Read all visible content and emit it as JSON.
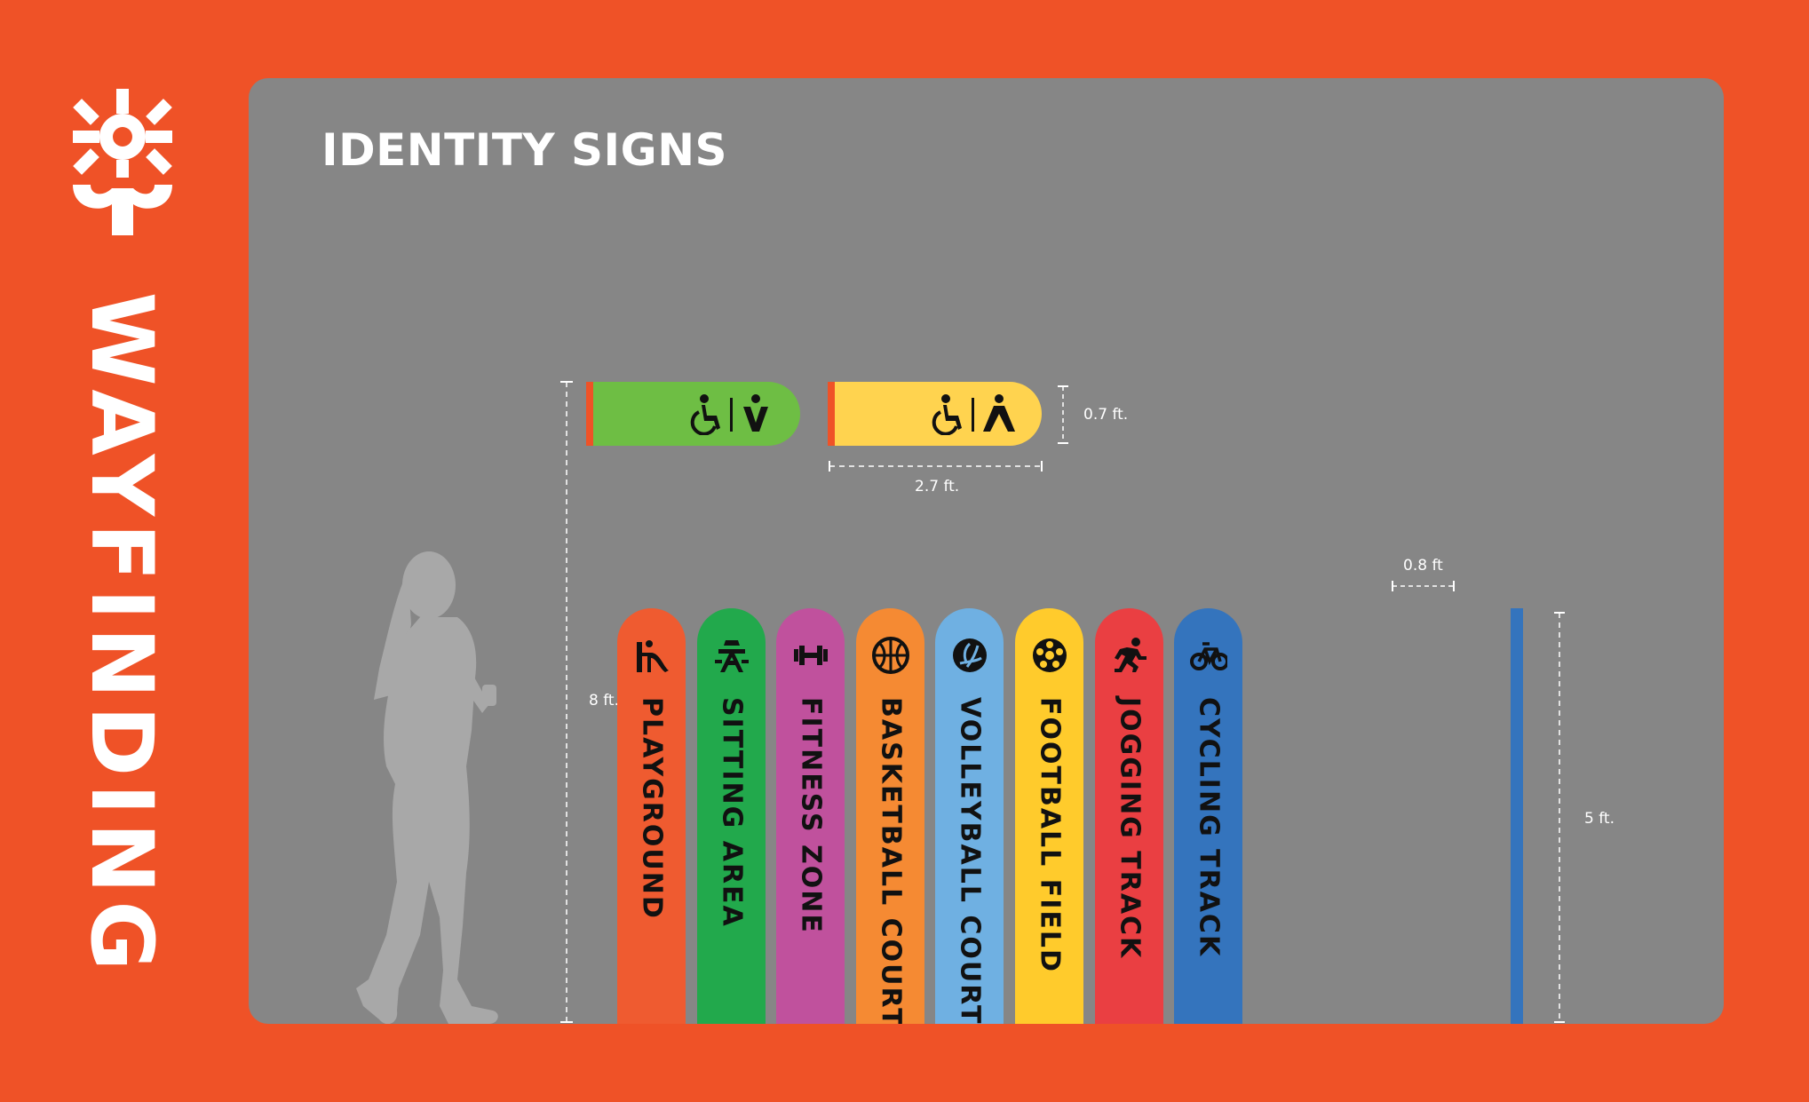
{
  "sidebar": {
    "title": "WAYFINDING",
    "logo_icon": "snowflake-tree-logo"
  },
  "panel": {
    "title": "IDENTITY SIGNS"
  },
  "dimensions": {
    "restroom_height": "0.7 ft.",
    "restroom_width": "2.7 ft.",
    "post_width": "0.8 ft",
    "total_height": "8 ft.",
    "post_height": "5 ft."
  },
  "restroom_signs": [
    {
      "name": "restroom-sign-green",
      "color": "#6EBE44",
      "icons": [
        "wheelchair-icon",
        "man-icon"
      ]
    },
    {
      "name": "restroom-sign-yellow",
      "color": "#FFD34F",
      "icons": [
        "wheelchair-icon",
        "woman-icon"
      ]
    }
  ],
  "posts": [
    {
      "label": "PLAYGROUND",
      "color": "#EF5B30",
      "icon": "slide-icon"
    },
    {
      "label": "SITTING AREA",
      "color": "#22A94C",
      "icon": "picnic-table-icon"
    },
    {
      "label": "FITNESS ZONE",
      "color": "#C0519D",
      "icon": "dumbbell-icon"
    },
    {
      "label": "BASKETBALL COURT",
      "color": "#F58A33",
      "icon": "basketball-icon"
    },
    {
      "label": "VOLLEYBALL COURT",
      "color": "#6FB0E2",
      "icon": "volleyball-icon"
    },
    {
      "label": "FOOTBALL FIELD",
      "color": "#FFCB2C",
      "icon": "football-icon"
    },
    {
      "label": "JOGGING TRACK",
      "color": "#EA3F42",
      "icon": "runner-icon"
    },
    {
      "label": "CYCLING TRACK",
      "color": "#3474BD",
      "icon": "bicycle-icon"
    }
  ],
  "thin_post_color": "#3474BD",
  "colors": {
    "background": "#EF5227",
    "panel": "#868686",
    "silhouette": "#A8A8A8"
  }
}
